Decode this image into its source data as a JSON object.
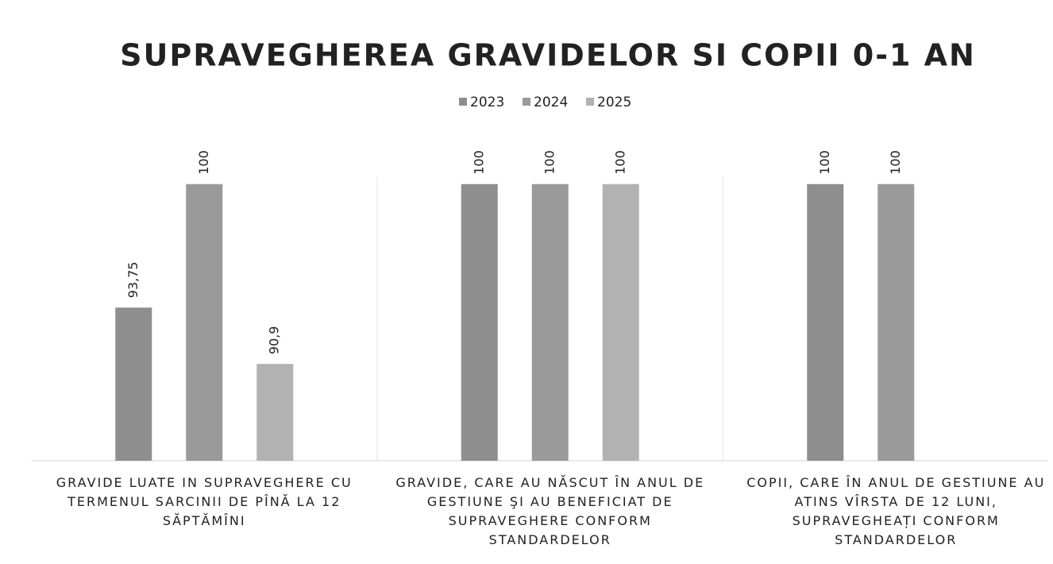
{
  "chart_data": {
    "type": "bar",
    "title": "SUPRAVEGHEREA GRAVIDELOR SI COPII 0-1 AN",
    "categories": [
      "GRAVIDE LUATE  IN SUPRAVEGHERE CU TERMENUL SARCINII DE PÎNĂ LA 12 SĂPTĂMÎNI",
      "GRAVIDE, CARE AU NĂSCUT ÎN ANUL DE GESTIUNE  ŞI AU  BENEFICIAT DE SUPRAVEGHERE CONFORM STANDARDELOR",
      "COPII, CARE ÎN ANUL DE GESTIUNE AU ATINS VÎRSTA DE 12 LUNI, SUPRAVEGHEAȚI CONFORM STANDARDELOR"
    ],
    "series": [
      {
        "name": "2023",
        "color": "#8e8e8e",
        "values": [
          93.75,
          100,
          100
        ],
        "value_labels": [
          "93,75",
          "100",
          "100"
        ]
      },
      {
        "name": "2024",
        "color": "#9a9a9a",
        "values": [
          100,
          100,
          100
        ],
        "value_labels": [
          "100",
          "100",
          "100"
        ]
      },
      {
        "name": "2025",
        "color": "#b2b2b2",
        "values": [
          90.9,
          100,
          null
        ],
        "value_labels": [
          "90,9",
          "100",
          null
        ]
      }
    ],
    "ylim": [
      86,
      102
    ],
    "legend": "top"
  }
}
